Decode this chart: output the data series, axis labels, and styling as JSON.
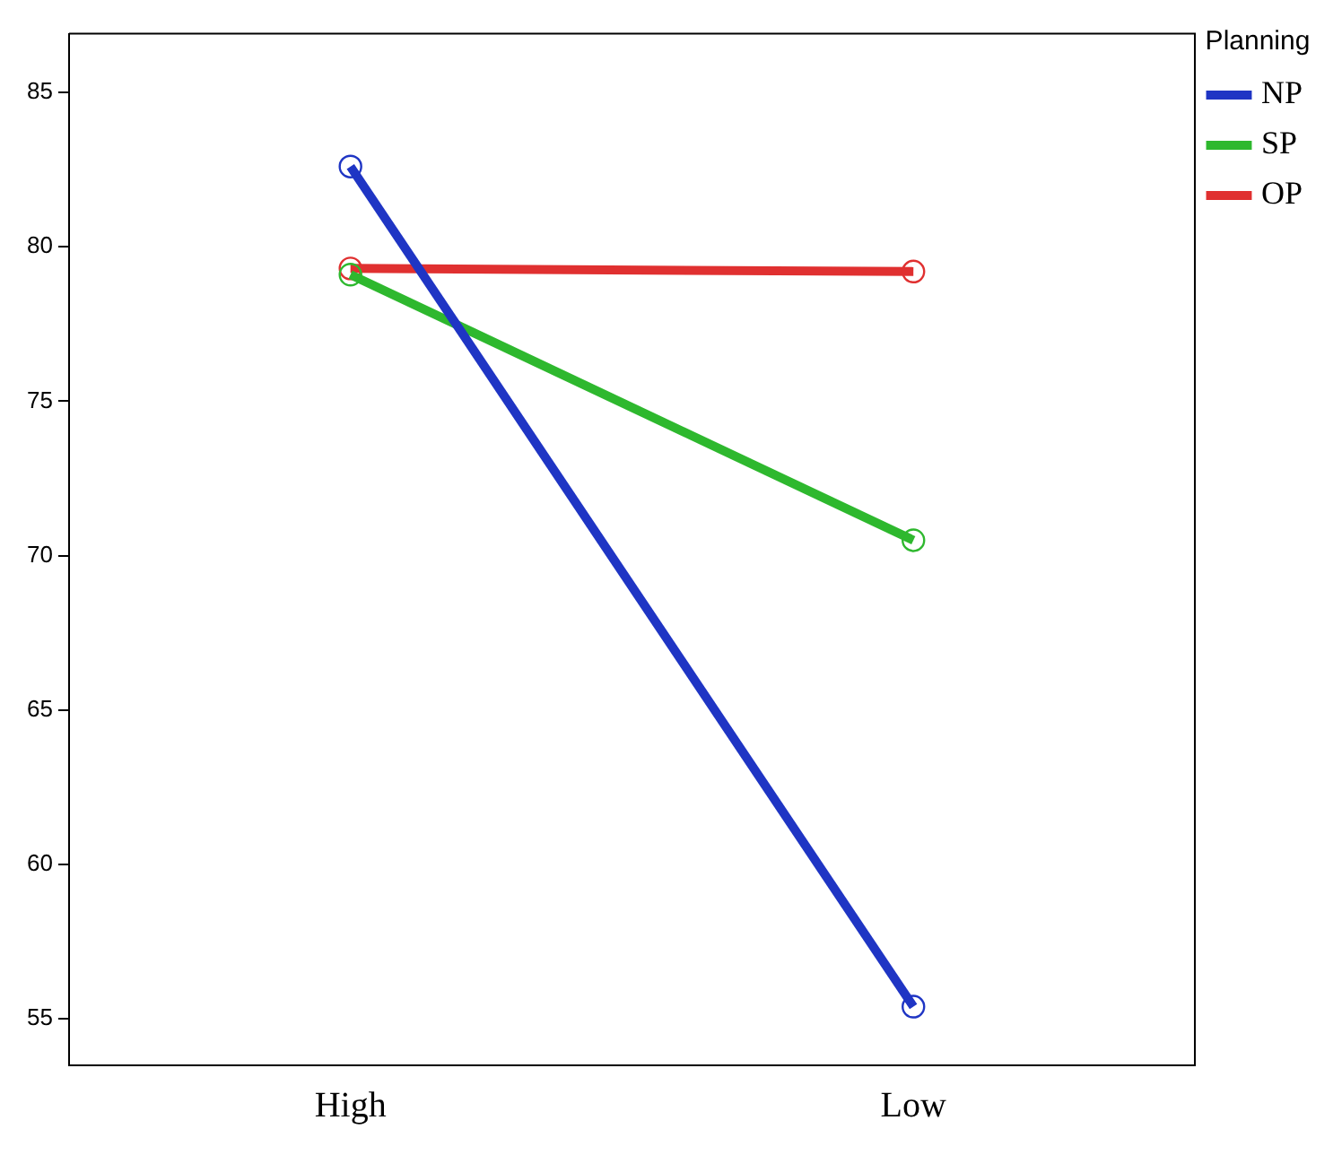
{
  "chart_data": {
    "type": "line",
    "categories": [
      "High",
      "Low"
    ],
    "series": [
      {
        "name": "NP",
        "color": "#1f35c4",
        "values": [
          82.6,
          55.4
        ]
      },
      {
        "name": "SP",
        "color": "#2eb82e",
        "values": [
          79.1,
          70.5
        ]
      },
      {
        "name": "OP",
        "color": "#e03030",
        "values": [
          79.3,
          79.2
        ]
      }
    ],
    "ylim": [
      53.5,
      86.9
    ],
    "yticks": [
      55,
      60,
      65,
      70,
      75,
      80,
      85
    ],
    "legend_title": "Planning",
    "legend": "top right",
    "grid": false,
    "marker": "circle",
    "line_style": "solid"
  }
}
